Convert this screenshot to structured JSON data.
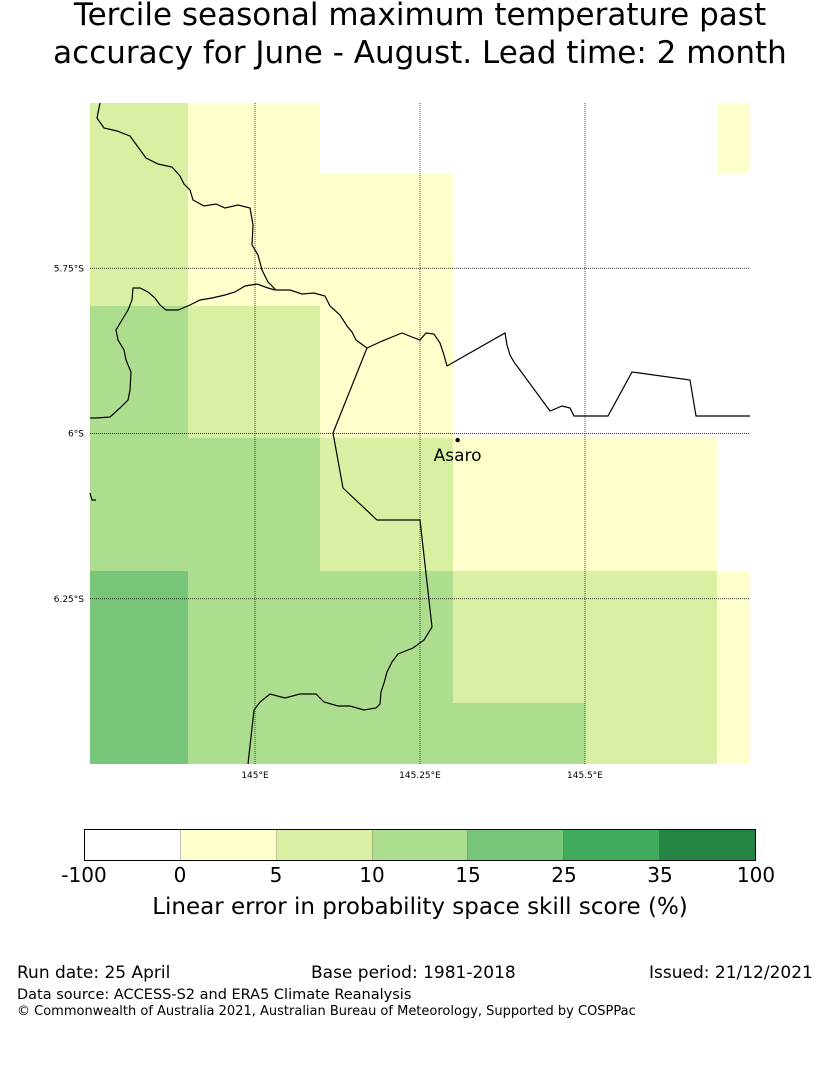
{
  "title": {
    "line1": "Tercile seasonal maximum temperature past",
    "line2": "accuracy for June - August. Lead time: 2 month"
  },
  "map": {
    "lat_range": [
      -6.5,
      -5.5
    ],
    "lon_range": [
      144.75,
      145.75
    ],
    "meridians": [
      {
        "lon": 145.0,
        "label": "145°E"
      },
      {
        "lon": 145.25,
        "label": "145.25°E"
      },
      {
        "lon": 145.5,
        "label": "145.5°E"
      }
    ],
    "parallels": [
      {
        "lat": -5.75,
        "label": "5.75°S"
      },
      {
        "lat": -6.0,
        "label": "6°S"
      },
      {
        "lat": -6.25,
        "label": "6.25°S"
      }
    ],
    "place": {
      "name": "Asaro",
      "lon": 145.307,
      "lat": -6.01
    }
  },
  "colorbar": {
    "ticks": [
      "-100",
      "0",
      "5",
      "10",
      "15",
      "25",
      "35",
      "100"
    ],
    "colors": [
      "#ffffff",
      "#ffffcc",
      "#d9f0a3",
      "#addd8e",
      "#78c679",
      "#41ab5d",
      "#238443"
    ],
    "label": "Linear error in probability space skill score (%)"
  },
  "footer": {
    "run_date": "Run date: 25 April",
    "base_period": "Base period: 1981-2018",
    "issued": "Issued: 21/12/2021",
    "data_source": "Data source: ACCESS-S2 and ERA5 Climate Reanalysis",
    "copyright": "© Commonwealth of Australia 2021, Australian Bureau of Meteorology, Supported by COSPPac"
  }
}
